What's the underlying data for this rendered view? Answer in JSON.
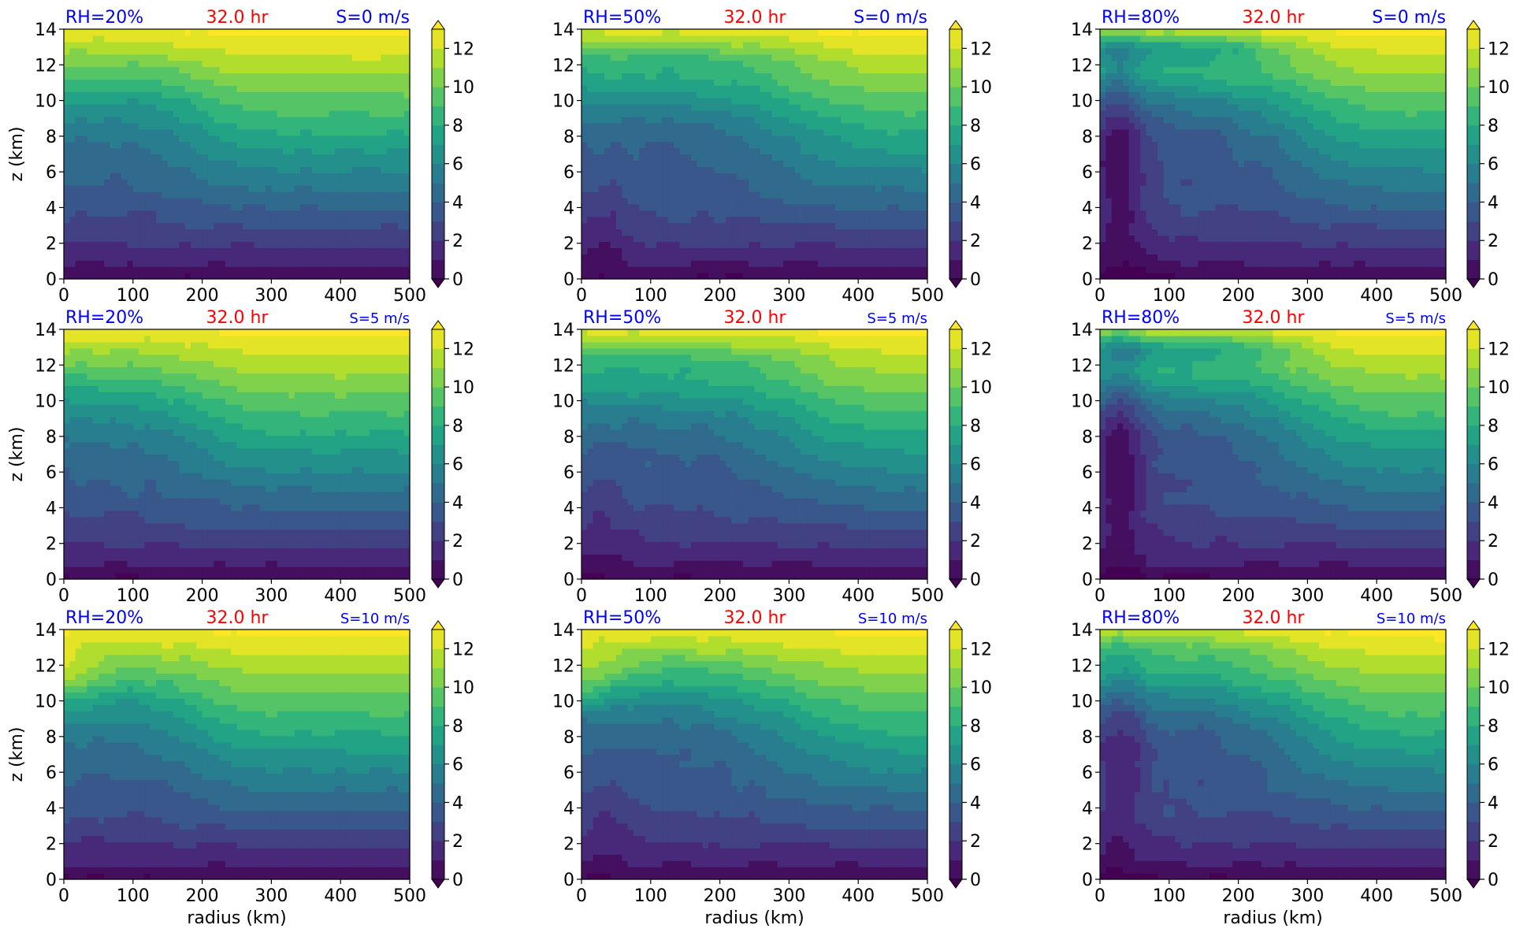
{
  "chart_data": {
    "type": "heatmap",
    "layout": {
      "rows": 3,
      "cols": 3
    },
    "xlabel": "radius (km)",
    "ylabel": "z (km)",
    "xlim": [
      0,
      500
    ],
    "ylim": [
      0,
      14
    ],
    "x_ticks": [
      "0",
      "100",
      "200",
      "300",
      "400",
      "500"
    ],
    "y_ticks": [
      "0",
      "2",
      "4",
      "6",
      "8",
      "10",
      "12",
      "14"
    ],
    "colorbar": {
      "ticks": [
        "0",
        "2",
        "4",
        "6",
        "8",
        "10",
        "12"
      ],
      "levels": [
        0,
        1,
        2,
        3,
        4,
        5,
        6,
        7,
        8,
        9,
        10,
        11,
        12,
        13
      ],
      "extend": "both",
      "colormap": "viridis"
    },
    "colors": {
      "rh_label": "#0000ff",
      "time_label": "#ff0000",
      "shear_label": "#0000ff"
    },
    "panels": [
      {
        "rh": "RH=20%",
        "time": "32.0 hr",
        "shear": "S=0 m/s",
        "moisture_rh": 20,
        "shear_ms": 0
      },
      {
        "rh": "RH=50%",
        "time": "32.0 hr",
        "shear": "S=0 m/s",
        "moisture_rh": 50,
        "shear_ms": 0
      },
      {
        "rh": "RH=80%",
        "time": "32.0 hr",
        "shear": "S=0 m/s",
        "moisture_rh": 80,
        "shear_ms": 0
      },
      {
        "rh": "RH=20%",
        "time": "32.0 hr",
        "shear": "S=5 m/s",
        "moisture_rh": 20,
        "shear_ms": 5
      },
      {
        "rh": "RH=50%",
        "time": "32.0 hr",
        "shear": "S=5 m/s",
        "moisture_rh": 50,
        "shear_ms": 5
      },
      {
        "rh": "RH=80%",
        "time": "32.0 hr",
        "shear": "S=5 m/s",
        "moisture_rh": 80,
        "shear_ms": 5
      },
      {
        "rh": "RH=20%",
        "time": "32.0 hr",
        "shear": "S=10 m/s",
        "moisture_rh": 20,
        "shear_ms": 10
      },
      {
        "rh": "RH=50%",
        "time": "32.0 hr",
        "shear": "S=10 m/s",
        "moisture_rh": 50,
        "shear_ms": 10
      },
      {
        "rh": "RH=80%",
        "time": "32.0 hr",
        "shear": "S=10 m/s",
        "moisture_rh": 80,
        "shear_ms": 10
      }
    ]
  }
}
